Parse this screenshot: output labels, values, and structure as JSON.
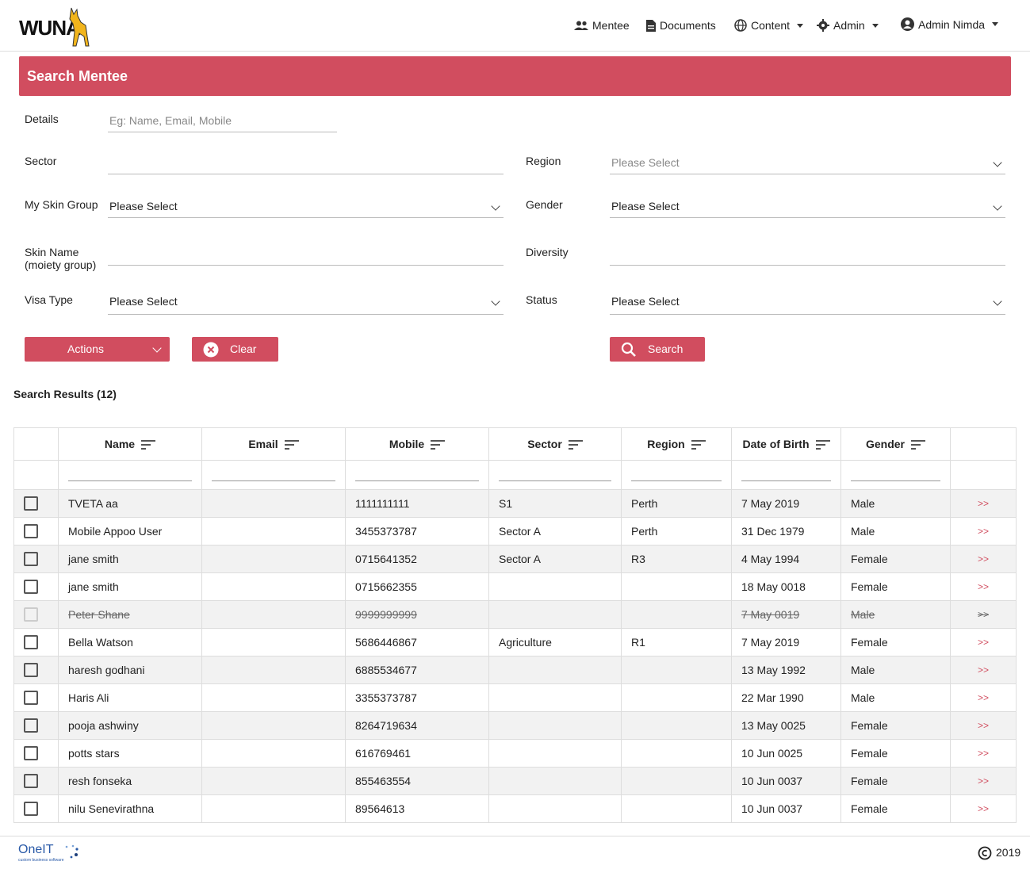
{
  "header": {
    "logo": "WUNA",
    "nav": [
      "Mentee",
      "Documents",
      "Content",
      "Admin",
      "Admin Nimda"
    ]
  },
  "panel": {
    "title": "Search Mentee"
  },
  "form": {
    "fields": [
      {
        "label": "Details",
        "placeholder": "Eg: Name, Email, Mobile"
      },
      {
        "label": "Sector"
      },
      {
        "label": "Region",
        "placeholder": "Please Select"
      },
      {
        "label": "My Skin Group",
        "value": "Please Select"
      },
      {
        "label": "Gender",
        "value": "Please Select"
      },
      {
        "label": "Skin Name (moiety group)"
      },
      {
        "label": "Diversity"
      },
      {
        "label": "Visa Type",
        "value": "Please Select"
      },
      {
        "label": "Status",
        "value": "Please Select"
      }
    ],
    "buttons": {
      "actions": "Actions",
      "clear": "Clear",
      "search": "Search"
    }
  },
  "results": {
    "title": "Search Results (12)"
  },
  "table": {
    "columns": [
      "Name",
      "Email",
      "Mobile",
      "Sector",
      "Region",
      "Date of Birth",
      "Gender"
    ],
    "row_link": ">>",
    "rows": [
      {
        "cells": [
          "TVETA aa",
          null,
          "1111111111",
          "S1",
          "Perth",
          "7 May 2019",
          "Male"
        ],
        "inactive": false
      },
      {
        "cells": [
          "Mobile Appoo User",
          null,
          "3455373787",
          "Sector A",
          "Perth",
          "31 Dec 1979",
          "Male"
        ],
        "inactive": false
      },
      {
        "cells": [
          "jane smith",
          null,
          "0715641352",
          "Sector A",
          "R3",
          "4 May 1994",
          "Female"
        ],
        "inactive": false
      },
      {
        "cells": [
          "jane smith",
          null,
          "0715662355",
          null,
          null,
          "18 May 0018",
          "Female"
        ],
        "inactive": false
      },
      {
        "cells": [
          "Peter Shane",
          null,
          "9999999999",
          null,
          null,
          "7 May 0019",
          "Male"
        ],
        "inactive": true
      },
      {
        "cells": [
          "Bella Watson",
          null,
          "5686446867",
          "Agriculture",
          "R1",
          "7 May 2019",
          "Female"
        ],
        "inactive": false
      },
      {
        "cells": [
          "haresh godhani",
          null,
          "6885534677",
          null,
          null,
          "13 May 1992",
          "Male"
        ],
        "inactive": false
      },
      {
        "cells": [
          "Haris Ali",
          null,
          "3355373787",
          null,
          null,
          "22 Mar 1990",
          "Male"
        ],
        "inactive": false
      },
      {
        "cells": [
          "pooja ashwiny",
          null,
          "8264719634",
          null,
          null,
          "13 May 0025",
          "Female"
        ],
        "inactive": false
      },
      {
        "cells": [
          "potts stars",
          null,
          "616769461",
          null,
          null,
          "10 Jun 0025",
          "Female"
        ],
        "inactive": false
      },
      {
        "cells": [
          "resh fonseka",
          null,
          "855463554",
          null,
          null,
          "10 Jun 0037",
          "Female"
        ],
        "inactive": false
      },
      {
        "cells": [
          "nilu Senevirathna",
          null,
          "89564613",
          null,
          null,
          "10 Jun 0037",
          "Female"
        ],
        "inactive": false
      }
    ]
  },
  "footer": {
    "brand": "OneIT",
    "tagline": "custom business software",
    "year": "2019"
  }
}
